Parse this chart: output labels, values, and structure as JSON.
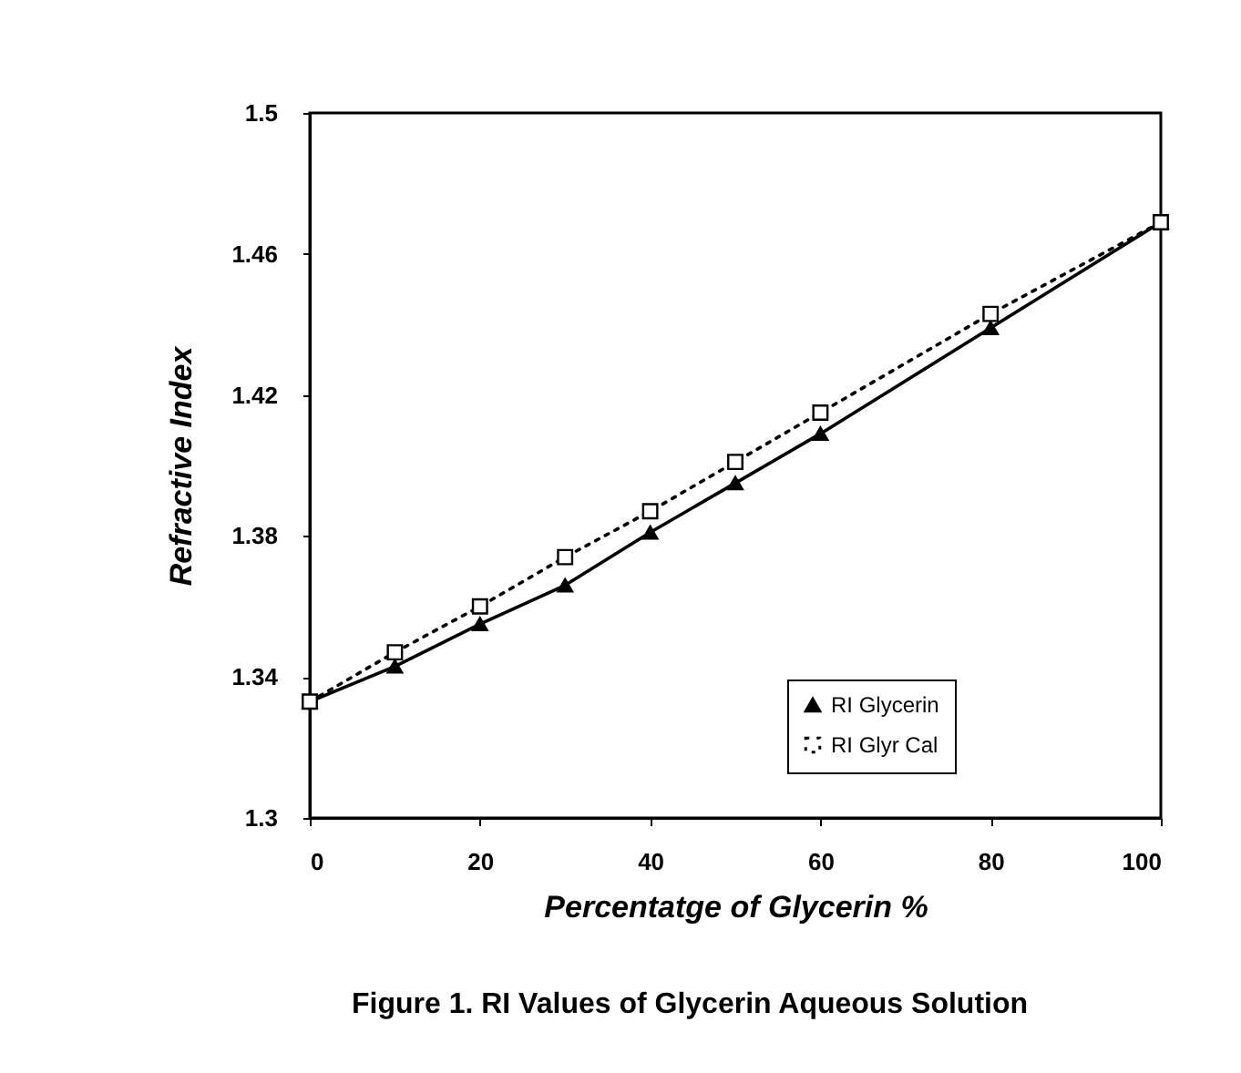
{
  "chart_data": {
    "type": "line",
    "xlabel": "Percentatge of Glycerin %",
    "ylabel": "Refractive Index",
    "x": [
      0,
      10,
      20,
      30,
      40,
      50,
      60,
      80,
      100
    ],
    "series": [
      {
        "name": "RI Glycerin",
        "color": "#000000",
        "marker": "triangle",
        "line_style": "solid",
        "values": [
          1.333,
          1.343,
          1.355,
          1.366,
          1.381,
          1.395,
          1.409,
          1.439,
          1.469
        ]
      },
      {
        "name": "RI Glyr Cal",
        "color": "#000000",
        "marker": "square",
        "line_style": "dotted",
        "values": [
          1.333,
          1.347,
          1.36,
          1.374,
          1.387,
          1.401,
          1.415,
          1.443,
          1.469
        ]
      }
    ],
    "xlim": [
      0,
      100
    ],
    "xticks": [
      0,
      20,
      40,
      60,
      80,
      100
    ],
    "ylim": [
      1.3,
      1.5
    ],
    "yticks": [
      {
        "value": 1.3,
        "label": "1.3"
      },
      1.34,
      1.38,
      1.42,
      1.46,
      {
        "value": 1.5,
        "label": "1.5"
      }
    ],
    "grid": false,
    "legend": "bottom right",
    "annotations": [
      "Figure 1. RI Values of Glycerin Aqueous Solution"
    ]
  }
}
